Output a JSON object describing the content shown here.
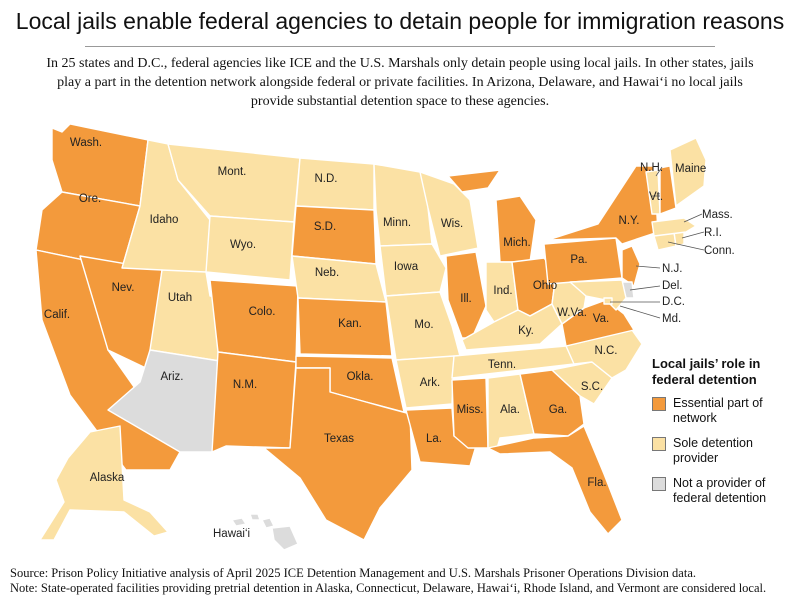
{
  "title": "Local jails enable federal agencies to detain people for immigration reasons",
  "subtitle": "In 25 states and D.C., federal agencies like ICE and the U.S. Marshals only detain people using local jails. In other states, jails play a part in the detention network alongside federal or private facilities. In Arizona, Delaware, and Hawai‘i no local jails provide substantial detention space to these agencies.",
  "colors": {
    "essential": "#f39a3c",
    "sole": "#fbe1a4",
    "none": "#dcdcdc",
    "border": "#ffffff"
  },
  "legend": {
    "title": "Local jails’ role in federal detention",
    "items": [
      {
        "category": "essential",
        "label": "Essential part of network"
      },
      {
        "category": "sole",
        "label": "Sole detention provider"
      },
      {
        "category": "none",
        "label": "Not a provider of federal detention"
      }
    ]
  },
  "states": {
    "WA": {
      "label": "Wash.",
      "category": "essential"
    },
    "OR": {
      "label": "Ore.",
      "category": "essential"
    },
    "CA": {
      "label": "Calif.",
      "category": "essential"
    },
    "NV": {
      "label": "Nev.",
      "category": "essential"
    },
    "ID": {
      "label": "Idaho",
      "category": "sole"
    },
    "MT": {
      "label": "Mont.",
      "category": "sole"
    },
    "WY": {
      "label": "Wyo.",
      "category": "sole"
    },
    "UT": {
      "label": "Utah",
      "category": "sole"
    },
    "AZ": {
      "label": "Ariz.",
      "category": "none"
    },
    "CO": {
      "label": "Colo.",
      "category": "essential"
    },
    "NM": {
      "label": "N.M.",
      "category": "essential"
    },
    "ND": {
      "label": "N.D.",
      "category": "sole"
    },
    "SD": {
      "label": "S.D.",
      "category": "essential"
    },
    "NE": {
      "label": "Neb.",
      "category": "sole"
    },
    "KS": {
      "label": "Kan.",
      "category": "essential"
    },
    "OK": {
      "label": "Okla.",
      "category": "essential"
    },
    "TX": {
      "label": "Texas",
      "category": "essential"
    },
    "MN": {
      "label": "Minn.",
      "category": "sole"
    },
    "IA": {
      "label": "Iowa",
      "category": "sole"
    },
    "MO": {
      "label": "Mo.",
      "category": "sole"
    },
    "AR": {
      "label": "Ark.",
      "category": "sole"
    },
    "LA": {
      "label": "La.",
      "category": "essential"
    },
    "WI": {
      "label": "Wis.",
      "category": "sole"
    },
    "IL": {
      "label": "Ill.",
      "category": "essential"
    },
    "MI": {
      "label": "Mich.",
      "category": "essential"
    },
    "IN": {
      "label": "Ind.",
      "category": "sole"
    },
    "OH": {
      "label": "Ohio",
      "category": "essential"
    },
    "KY": {
      "label": "Ky.",
      "category": "sole"
    },
    "TN": {
      "label": "Tenn.",
      "category": "sole"
    },
    "MS": {
      "label": "Miss.",
      "category": "essential"
    },
    "AL": {
      "label": "Ala.",
      "category": "sole"
    },
    "GA": {
      "label": "Ga.",
      "category": "essential"
    },
    "FL": {
      "label": "Fla.",
      "category": "essential"
    },
    "SC": {
      "label": "S.C.",
      "category": "sole"
    },
    "NC": {
      "label": "N.C.",
      "category": "sole"
    },
    "VA": {
      "label": "Va.",
      "category": "essential"
    },
    "WV": {
      "label": "W.Va.",
      "category": "sole"
    },
    "PA": {
      "label": "Pa.",
      "category": "essential"
    },
    "NY": {
      "label": "N.Y.",
      "category": "essential"
    },
    "NJ": {
      "label": "N.J.",
      "category": "essential"
    },
    "DE": {
      "label": "Del.",
      "category": "none"
    },
    "MD": {
      "label": "Md.",
      "category": "sole"
    },
    "DC": {
      "label": "D.C.",
      "category": "sole"
    },
    "CT": {
      "label": "Conn.",
      "category": "sole"
    },
    "RI": {
      "label": "R.I.",
      "category": "sole"
    },
    "MA": {
      "label": "Mass.",
      "category": "sole"
    },
    "VT": {
      "label": "Vt.",
      "category": "sole"
    },
    "NH": {
      "label": "N.H.",
      "category": "essential"
    },
    "ME": {
      "label": "Maine",
      "category": "sole"
    },
    "AK": {
      "label": "Alaska",
      "category": "sole"
    },
    "HI": {
      "label": "Hawai‘i",
      "category": "none"
    }
  },
  "footer": {
    "source": "Source: Prison Policy Initiative analysis of April 2025 ICE Detention Management and U.S. Marshals Prisoner Operations Division data.",
    "note": "Note: State-operated facilities providing pretrial detention in Alaska, Connecticut, Delaware, Hawai‘i, Rhode Island, and Vermont are considered local."
  }
}
